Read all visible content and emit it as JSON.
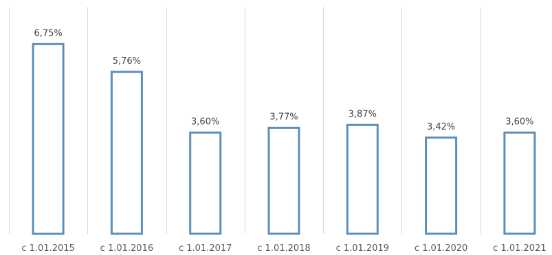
{
  "chart_data": {
    "type": "bar",
    "categories": [
      "с 1.01.2015",
      "с 1.01.2016",
      "с 1.01.2017",
      "с 1.01.2018",
      "с 1.01.2019",
      "с 1.01.2020",
      "с 1.01.2021"
    ],
    "values": [
      6.75,
      5.76,
      3.6,
      3.77,
      3.87,
      3.42,
      3.6
    ],
    "data_labels": [
      "6,75%",
      "5,76%",
      "3,60%",
      "3,77%",
      "3,87%",
      "3,42%",
      "3,60%"
    ],
    "ylim": [
      0,
      8
    ],
    "grid": "vertical separators",
    "colors": {
      "bar_stroke": "#5b8fbc",
      "bar_fill": "#ffffff",
      "grid": "#d9d9d9"
    }
  }
}
